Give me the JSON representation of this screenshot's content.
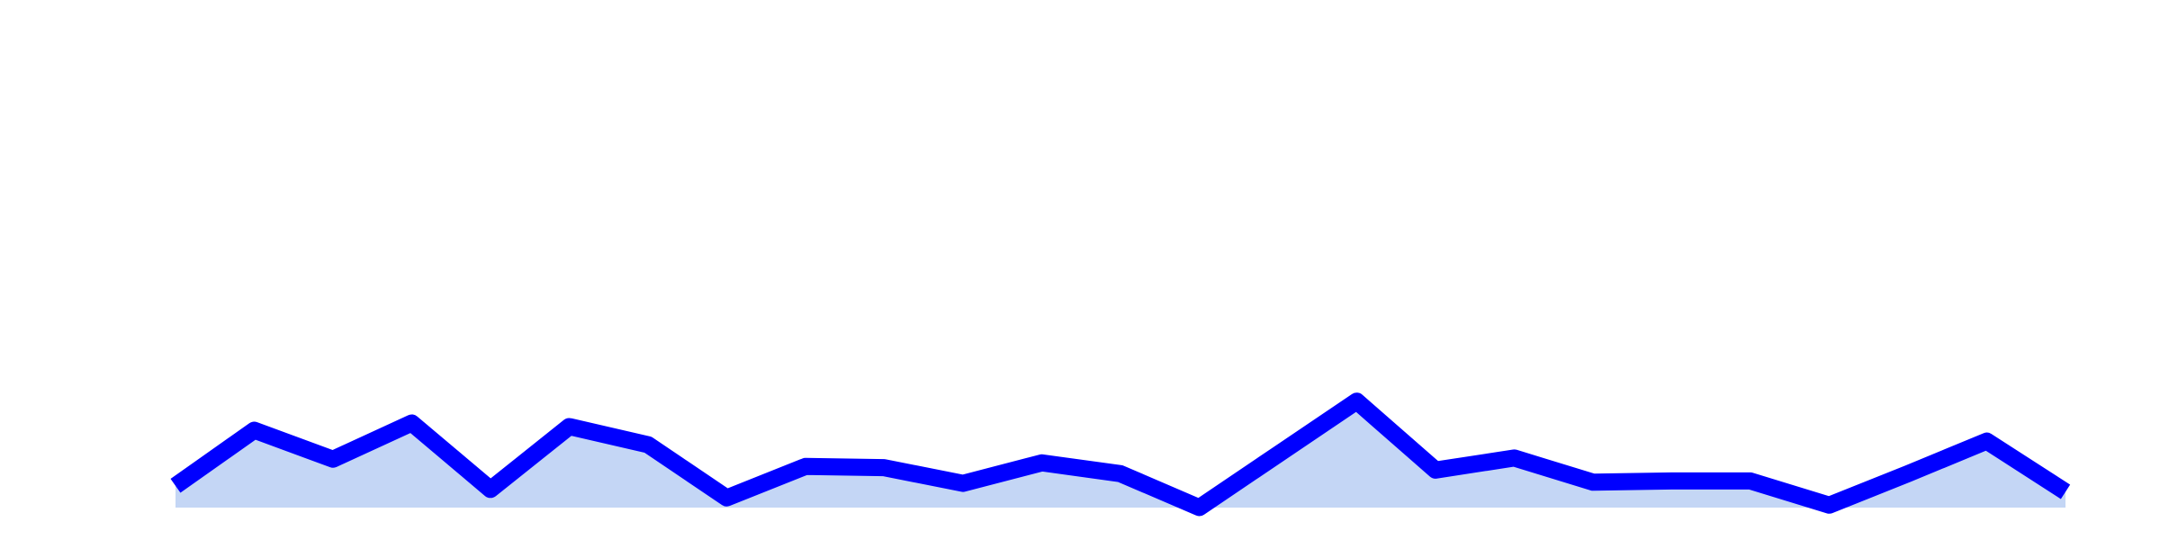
{
  "chart_data": {
    "type": "area",
    "x": [
      1,
      2,
      3,
      4,
      5,
      6,
      7,
      8,
      9,
      10,
      11,
      12,
      13,
      14,
      15,
      16,
      17,
      18,
      19,
      20,
      21,
      22,
      23,
      24,
      25
    ],
    "series": [
      {
        "values": [
          18,
          64,
          40,
          70,
          15,
          67,
          52,
          8,
          34,
          33,
          20,
          37,
          28,
          0,
          44,
          88,
          31,
          41,
          21,
          22,
          22,
          2,
          28,
          55,
          13
        ],
        "line_color": "#0000ff",
        "fill_color": "#c4d6f5"
      }
    ],
    "ylim": [
      -6,
      420
    ],
    "title": "",
    "xlabel": "",
    "ylabel": "",
    "grid": false,
    "legend": "none"
  }
}
